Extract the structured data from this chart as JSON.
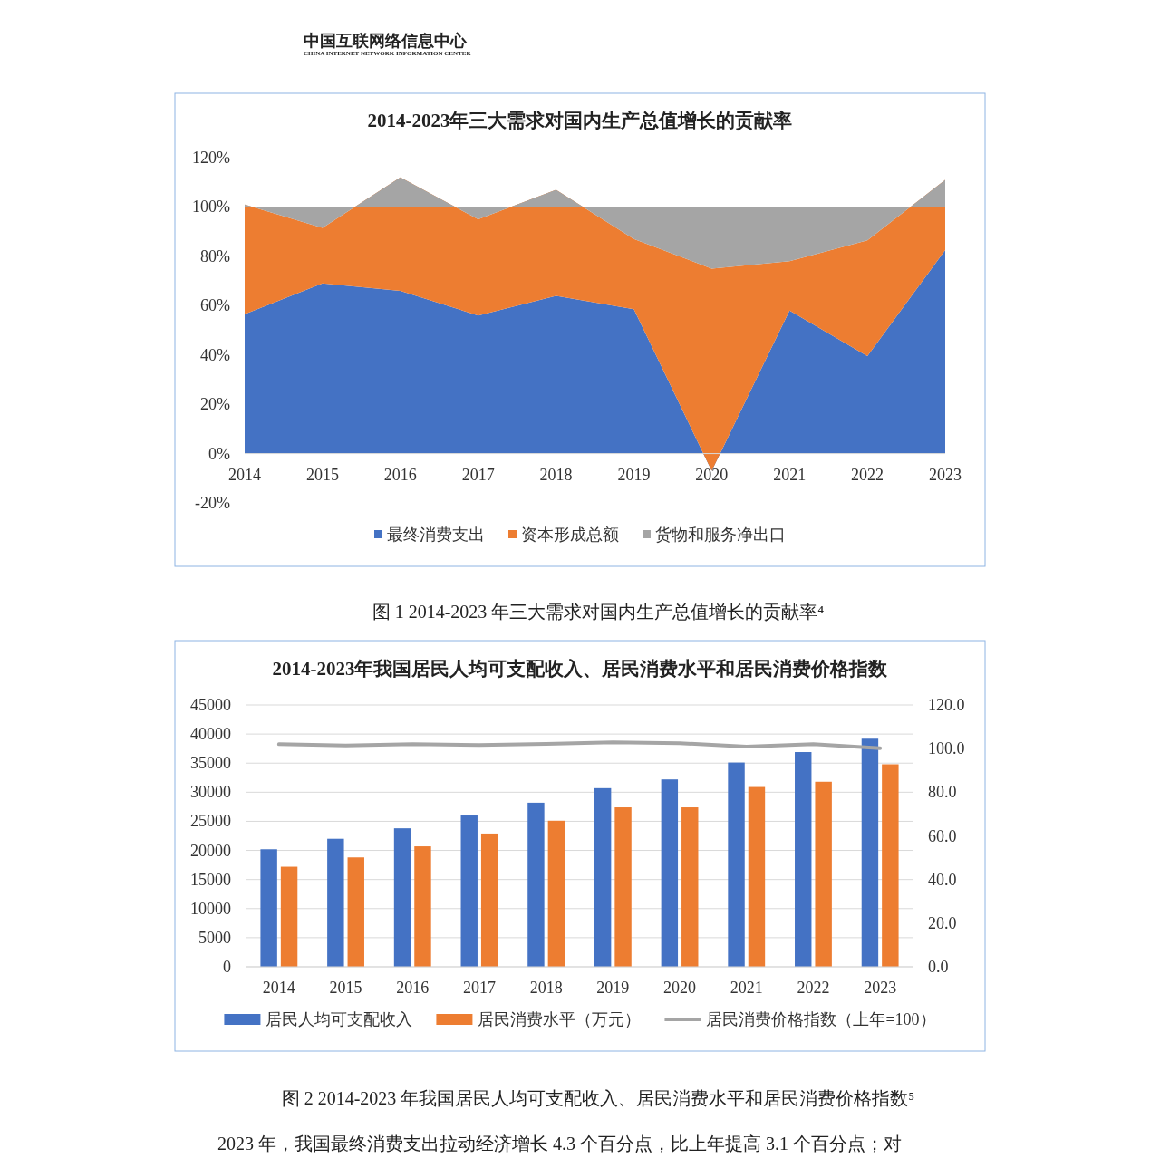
{
  "chart_data": [
    {
      "type": "area",
      "stacked": true,
      "title": "2014-2023年三大需求对国内生产总值增长的贡献率",
      "categories": [
        "2014",
        "2015",
        "2016",
        "2017",
        "2018",
        "2019",
        "2020",
        "2021",
        "2022",
        "2023"
      ],
      "series": [
        {
          "name": "最终消费支出",
          "color": "#4472c4",
          "values": [
            56.5,
            69,
            66,
            56,
            64,
            58.5,
            -7,
            58,
            39.5,
            82.5
          ]
        },
        {
          "name": "资本形成总额",
          "color": "#ed7d31",
          "values": [
            44.5,
            22.5,
            46,
            39,
            43,
            28.5,
            82,
            20,
            47,
            28.5
          ]
        },
        {
          "name": "货物和服务净出口",
          "color": "#a5a5a5",
          "values": [
            -1,
            8.5,
            -12,
            5,
            -7,
            13,
            25,
            22,
            13.5,
            -11
          ]
        }
      ],
      "ylim": [
        -20,
        120
      ],
      "yticks": [
        {
          "value": -20,
          "label": "-20%"
        },
        {
          "value": 0,
          "label": "0%"
        },
        {
          "value": 20,
          "label": "20%"
        },
        {
          "value": 40,
          "label": "40%"
        },
        {
          "value": 60,
          "label": "60%"
        },
        {
          "value": 80,
          "label": "80%"
        },
        {
          "value": 100,
          "label": "100%"
        },
        {
          "value": 120,
          "label": "120%"
        }
      ],
      "grid": false,
      "legend": "bottom",
      "annotations": [
        "中国互联网络信息中心",
        "CHINA INTERNET NETWORK INFORMATION CENTER",
        "图 1  2014-2023 年三大需求对国内生产总值增长的贡献率⁴"
      ]
    },
    {
      "type": "bar",
      "title": "2014-2023年我国居民人均可支配收入、居民消费水平和居民消费价格指数",
      "categories": [
        "2014",
        "2015",
        "2016",
        "2017",
        "2018",
        "2019",
        "2020",
        "2021",
        "2022",
        "2023"
      ],
      "series": [
        {
          "name": "居民人均可支配收入",
          "color": "#4472c4",
          "values": [
            20200,
            22000,
            23800,
            26000,
            28200,
            30700,
            32200,
            35100,
            36900,
            39200
          ]
        },
        {
          "name": "居民消费水平（万元）",
          "color": "#ed7d31",
          "values": [
            17200,
            18800,
            20700,
            22900,
            25100,
            27400,
            27400,
            30900,
            31800,
            34800
          ]
        },
        {
          "name": "居民消费价格指数（上年=100）",
          "color": "#a5a5a5",
          "type": "line",
          "axis": "y2",
          "values": [
            102.0,
            101.4,
            102.0,
            101.6,
            102.1,
            102.9,
            102.5,
            100.9,
            102.0,
            100.2
          ]
        }
      ],
      "ylim": [
        0,
        45000
      ],
      "yticks": [
        0,
        5000,
        10000,
        15000,
        20000,
        25000,
        30000,
        35000,
        40000,
        45000
      ],
      "y2lim": [
        0,
        120
      ],
      "y2ticks": [
        {
          "value": 0,
          "label": "0.0"
        },
        {
          "value": 20,
          "label": "20.0"
        },
        {
          "value": 40,
          "label": "40.0"
        },
        {
          "value": 60,
          "label": "60.0"
        },
        {
          "value": 80,
          "label": "80.0"
        },
        {
          "value": 100,
          "label": "100.0"
        },
        {
          "value": 120,
          "label": "120.0"
        }
      ],
      "grid": "y",
      "legend": "bottom",
      "line_style": "solid",
      "annotations": [
        "图 2  2014-2023 年我国居民人均可支配收入、居民消费水平和居民消费价格指数⁵",
        "2023 年，我国最终消费支出拉动经济增长 4.3 个百分点，比上年提高 3.1 个百分点；对"
      ]
    }
  ]
}
